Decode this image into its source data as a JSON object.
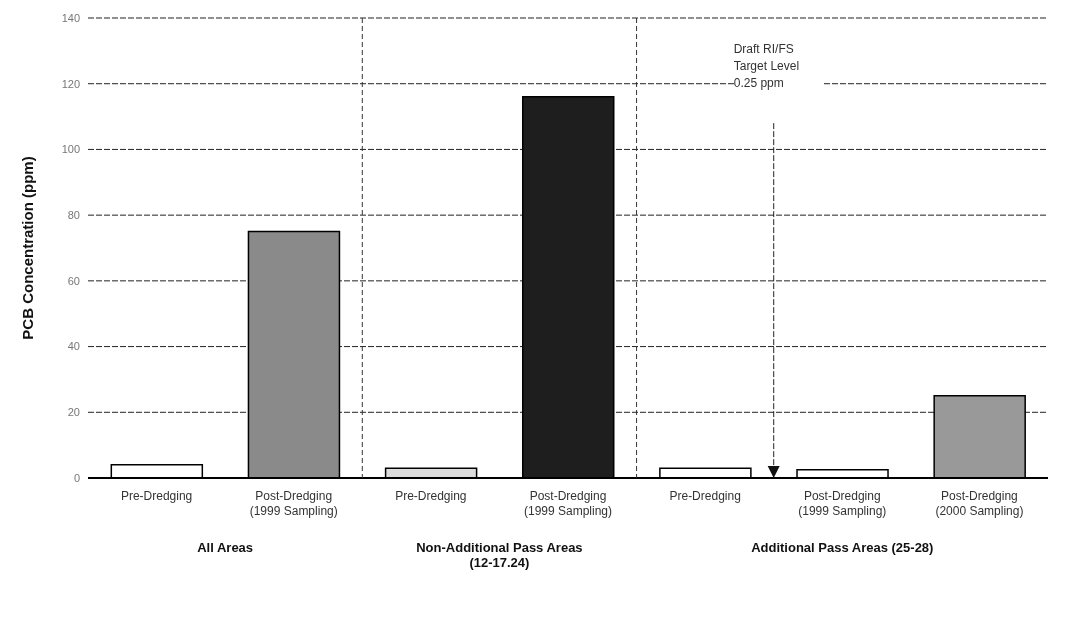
{
  "chart_data": {
    "type": "bar",
    "ylabel": "PCB Concentration (ppm)",
    "categories": [
      "Pre-Dredging",
      "Post-Dredging (1999 Sampling)",
      "Pre-Dredging",
      "Post-Dredging (1999 Sampling)",
      "Pre-Dredging",
      "Post-Dredging (1999 Sampling)",
      "Post-Dredging (2000 Sampling)"
    ],
    "values": [
      4,
      75,
      3,
      116,
      3,
      2.5,
      25
    ],
    "colors": [
      "#ffffff",
      "#8a8a8a",
      "#dddddd",
      "#1e1e1e",
      "#ffffff",
      "#ffffff",
      "#999999"
    ],
    "ylim": [
      0,
      140
    ],
    "yticks": [
      0,
      20,
      40,
      60,
      80,
      100,
      120,
      140
    ],
    "grid": "y",
    "annotations": [
      "Draft RI/FS Target Level 0.25 ppm",
      "All Areas",
      "Non-Additional Pass Areas (12-17.24)",
      "Additional Pass Areas (25-28)"
    ]
  }
}
